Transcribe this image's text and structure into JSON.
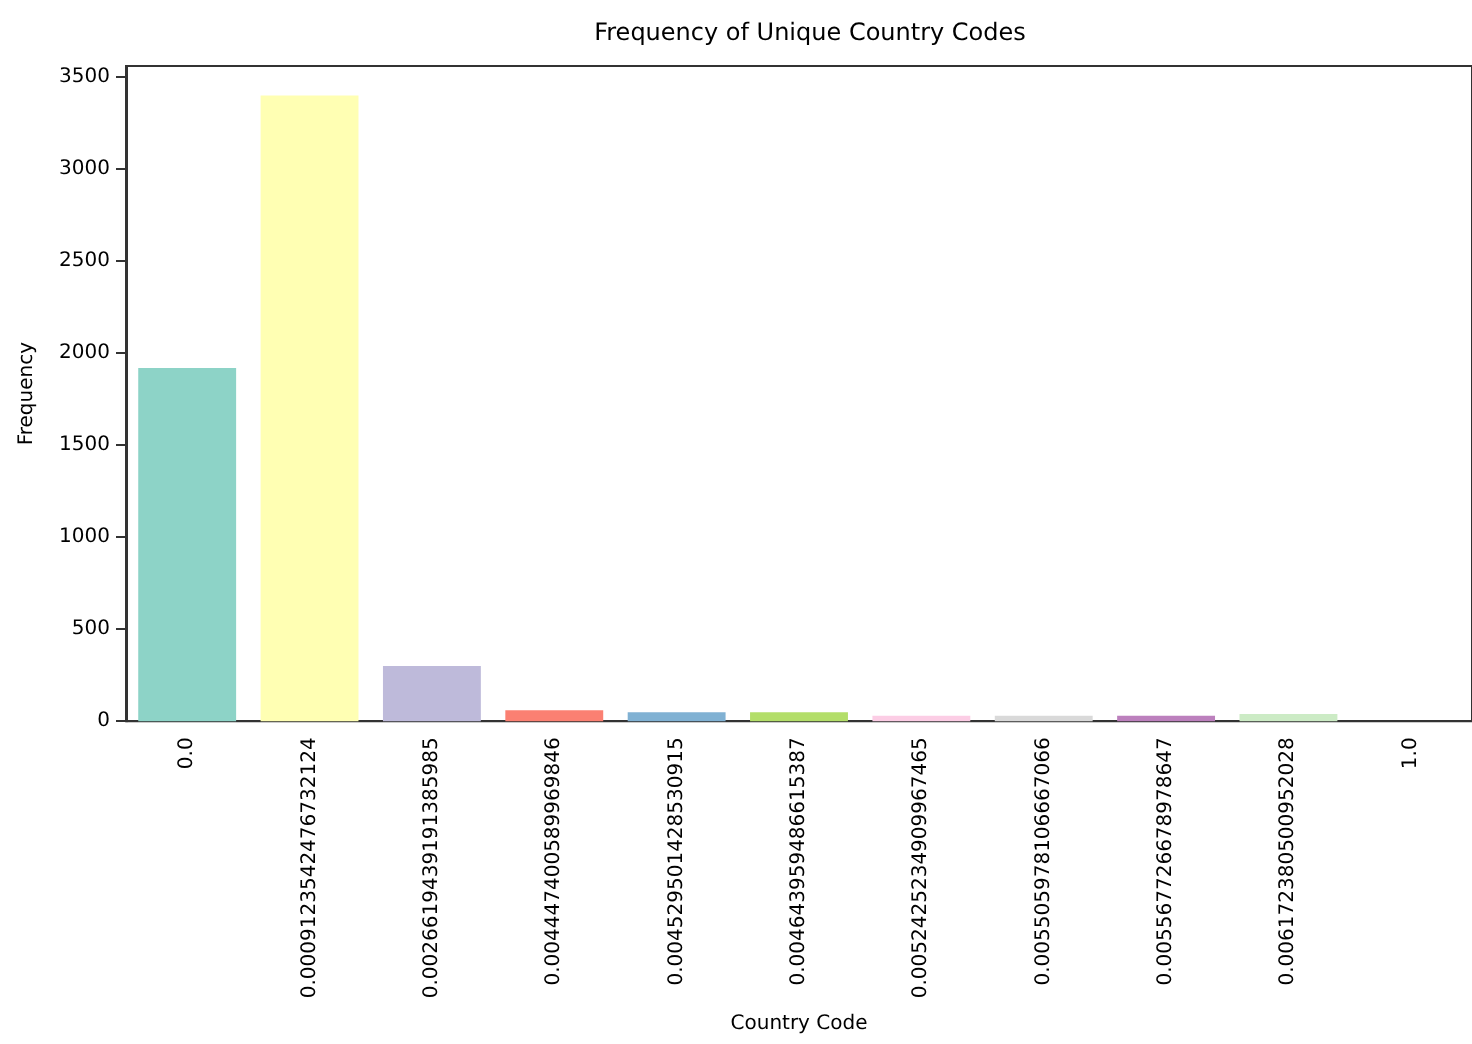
{
  "chart_data": {
    "type": "bar",
    "title": "Frequency of Unique Country Codes",
    "xlabel": "Country Code",
    "ylabel": "Frequency",
    "categories": [
      "0.0",
      "0.0009123542476732124",
      "0.0026619439191385985",
      "0.004447400589969846",
      "0.004529501428530915",
      "0.004643959486615387",
      "0.0052425234909967465",
      "0.005505978106667066",
      "0.005567726678978647",
      "0.006172380500952028",
      "1.0"
    ],
    "values": [
      1920,
      3400,
      300,
      60,
      50,
      50,
      30,
      30,
      30,
      40,
      1
    ],
    "colors": [
      "#8dd3c7",
      "#ffffb3",
      "#bebada",
      "#fb8072",
      "#80b1d3",
      "#b3de69",
      "#fccde5",
      "#d9d9d9",
      "#bc80bd",
      "#ccebc5",
      "#ffed6f"
    ],
    "ylim": [
      0,
      3560
    ],
    "yticks": [
      0,
      500,
      1000,
      1500,
      2000,
      2500,
      3000,
      3500
    ],
    "grid": false
  }
}
